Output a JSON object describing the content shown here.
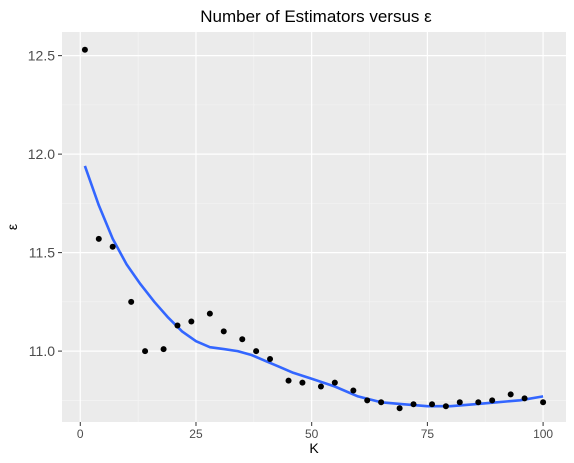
{
  "chart_data": {
    "type": "scatter",
    "title": "Number of Estimators versus ε",
    "xlabel": "K",
    "ylabel": "ε",
    "xlim": [
      -3.95,
      104.95
    ],
    "ylim": [
      10.64,
      12.62
    ],
    "xticks": [
      0,
      25,
      50,
      75,
      100
    ],
    "yticks": [
      11.0,
      11.5,
      12.0,
      12.5
    ],
    "ytick_labels": [
      "11.0",
      "11.5",
      "12.0",
      "12.5"
    ],
    "grid": true,
    "background": "#ebebeb",
    "points": {
      "color": "#000000",
      "x": [
        1,
        4,
        7,
        11,
        14,
        18,
        21,
        24,
        28,
        31,
        35,
        38,
        41,
        45,
        48,
        52,
        55,
        59,
        62,
        65,
        69,
        72,
        76,
        79,
        82,
        86,
        89,
        93,
        96,
        100
      ],
      "y": [
        12.53,
        11.57,
        11.53,
        11.25,
        11.0,
        11.01,
        11.13,
        11.15,
        11.19,
        11.1,
        11.06,
        11.0,
        10.96,
        10.85,
        10.84,
        10.82,
        10.84,
        10.8,
        10.75,
        10.74,
        10.71,
        10.73,
        10.73,
        10.72,
        10.74,
        10.74,
        10.75,
        10.78,
        10.76,
        10.74
      ]
    },
    "smooth": {
      "color": "#3366ff",
      "x": [
        1,
        4,
        7,
        10,
        13,
        16,
        19,
        22,
        25,
        28,
        31,
        34,
        37,
        40,
        43,
        46,
        50,
        55,
        60,
        65,
        70,
        75,
        80,
        85,
        90,
        95,
        100
      ],
      "y": [
        11.94,
        11.74,
        11.57,
        11.44,
        11.34,
        11.25,
        11.17,
        11.1,
        11.05,
        11.02,
        11.01,
        11.0,
        10.98,
        10.95,
        10.92,
        10.89,
        10.86,
        10.82,
        10.77,
        10.74,
        10.73,
        10.72,
        10.72,
        10.73,
        10.74,
        10.75,
        10.77
      ]
    }
  }
}
